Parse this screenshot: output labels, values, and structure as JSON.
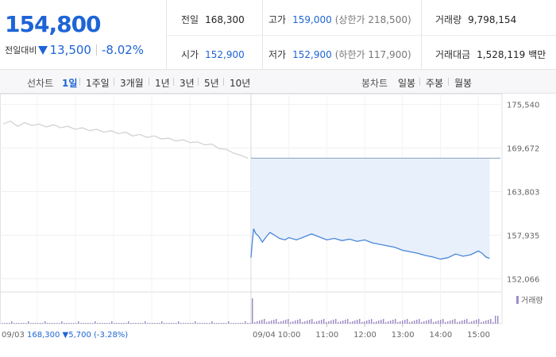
{
  "quote": {
    "price": "154,800",
    "change_label": "전일대비",
    "change_value": "13,500",
    "change_pct": "-8.02%",
    "prev_close_label": "전일",
    "prev_close": "168,300",
    "high_label": "고가",
    "high": "159,000",
    "upper_limit": "(상한가 218,500)",
    "volume_label": "거래량",
    "volume": "9,798,154",
    "open_label": "시가",
    "open": "152,900",
    "low_label": "저가",
    "low": "152,900",
    "lower_limit": "(하한가 117,900)",
    "amount_label": "거래대금",
    "amount": "1,528,119",
    "amount_unit": "백만"
  },
  "tabs": {
    "line_chart_label": "선차트",
    "periods": [
      "1일",
      "1주일",
      "3개월",
      "1년",
      "3년",
      "5년",
      "10년"
    ],
    "active_period": "1일",
    "candle_chart_label": "봉차트",
    "candle_periods": [
      "일봉",
      "주봉",
      "월봉"
    ]
  },
  "chart_data": {
    "type": "line",
    "y_ticks": [
      "175,540",
      "169,672",
      "163,803",
      "157,935",
      "152,066"
    ],
    "y_tick_values": [
      175540,
      169672,
      163803,
      157935,
      152066
    ],
    "ylim": [
      150500,
      177000
    ],
    "prev_day": {
      "date": "09/03",
      "close": "168,300",
      "change": "▼5,700",
      "change_pct": "(-3.28%)",
      "trend": [
        172900,
        173300,
        172600,
        173100,
        172700,
        172900,
        172500,
        172800,
        172400,
        172600,
        172200,
        172400,
        172000,
        172200,
        171800,
        172000,
        171600,
        171800,
        171300,
        171500,
        171100,
        171300,
        170900,
        171000,
        170600,
        170800,
        170400,
        170500,
        170100,
        170200,
        169600,
        169500,
        169000,
        168700,
        168300
      ]
    },
    "reference_level": 168300,
    "today": {
      "date": "09/04",
      "x_ticks": [
        "10:00",
        "11:00",
        "12:00",
        "13:00",
        "14:00",
        "15:00"
      ],
      "series": [
        {
          "time": 9.0,
          "value": 154900
        },
        {
          "time": 9.03,
          "value": 156800
        },
        {
          "time": 9.07,
          "value": 158800
        },
        {
          "time": 9.12,
          "value": 158200
        },
        {
          "time": 9.2,
          "value": 157800
        },
        {
          "time": 9.3,
          "value": 157000
        },
        {
          "time": 9.4,
          "value": 157700
        },
        {
          "time": 9.5,
          "value": 158300
        },
        {
          "time": 9.6,
          "value": 158000
        },
        {
          "time": 9.75,
          "value": 157500
        },
        {
          "time": 9.9,
          "value": 157300
        },
        {
          "time": 10.0,
          "value": 157600
        },
        {
          "time": 10.2,
          "value": 157300
        },
        {
          "time": 10.4,
          "value": 157700
        },
        {
          "time": 10.6,
          "value": 158100
        },
        {
          "time": 10.8,
          "value": 157700
        },
        {
          "time": 11.0,
          "value": 157300
        },
        {
          "time": 11.2,
          "value": 157500
        },
        {
          "time": 11.4,
          "value": 157200
        },
        {
          "time": 11.6,
          "value": 157400
        },
        {
          "time": 11.8,
          "value": 157100
        },
        {
          "time": 12.0,
          "value": 157300
        },
        {
          "time": 12.2,
          "value": 156900
        },
        {
          "time": 12.4,
          "value": 156700
        },
        {
          "time": 12.6,
          "value": 156500
        },
        {
          "time": 12.8,
          "value": 156300
        },
        {
          "time": 13.0,
          "value": 155900
        },
        {
          "time": 13.2,
          "value": 155700
        },
        {
          "time": 13.4,
          "value": 155500
        },
        {
          "time": 13.6,
          "value": 155200
        },
        {
          "time": 13.8,
          "value": 155000
        },
        {
          "time": 14.0,
          "value": 154700
        },
        {
          "time": 14.2,
          "value": 154900
        },
        {
          "time": 14.4,
          "value": 155400
        },
        {
          "time": 14.6,
          "value": 155100
        },
        {
          "time": 14.8,
          "value": 155300
        },
        {
          "time": 15.0,
          "value": 155800
        },
        {
          "time": 15.1,
          "value": 155500
        },
        {
          "time": 15.2,
          "value": 155000
        },
        {
          "time": 15.3,
          "value": 154800
        }
      ]
    },
    "volume_label": "거래량",
    "grid": true
  },
  "colors": {
    "accent_blue": "#1e64d6",
    "line_blue": "#4a86d8",
    "fill_blue": "#e8f0fc",
    "prev_line": "#cfcfcf",
    "volume_purple": "#a08cc8"
  }
}
